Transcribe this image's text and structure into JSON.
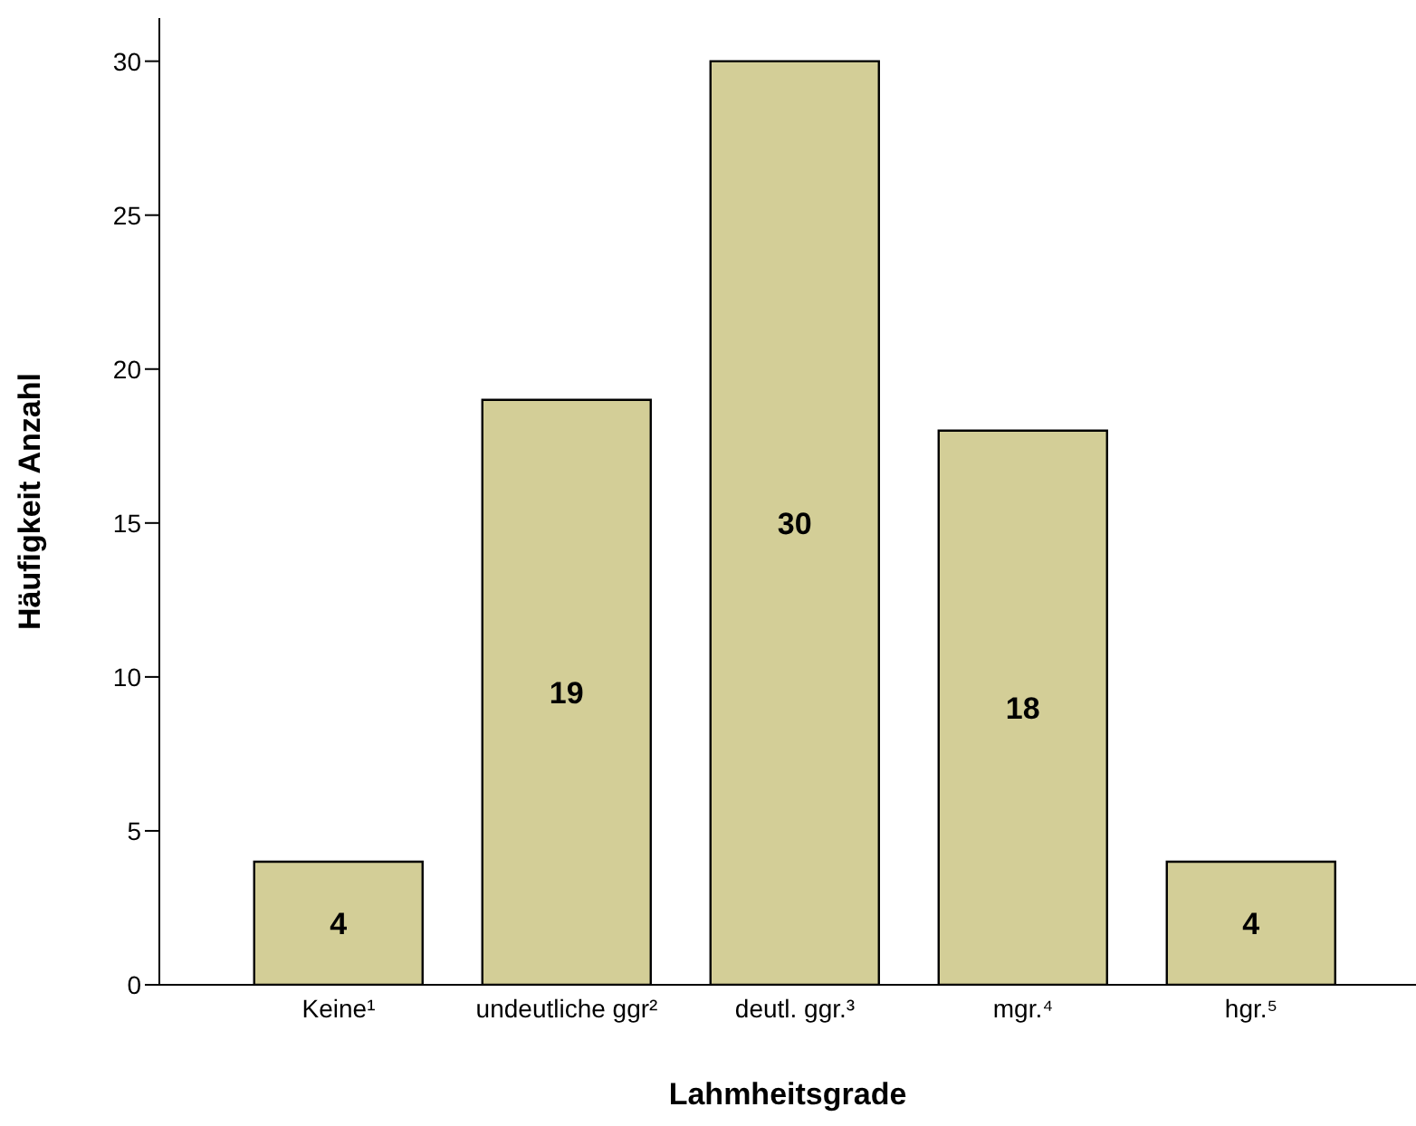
{
  "chart_data": {
    "type": "bar",
    "xlabel": "Lahmheitsgrade",
    "ylabel": "Häufigkeit Anzahl",
    "categories": [
      "Keine¹",
      "undeutliche ggr²",
      "deutl. ggr.³",
      "mgr.⁴",
      "hgr.⁵"
    ],
    "values": [
      4,
      19,
      30,
      18,
      4
    ],
    "color": "#d3ce97",
    "ylim": [
      0,
      31.4
    ],
    "yticks": [
      0,
      5,
      10,
      15,
      20,
      25,
      30
    ],
    "grid": false,
    "data_labels": true
  }
}
